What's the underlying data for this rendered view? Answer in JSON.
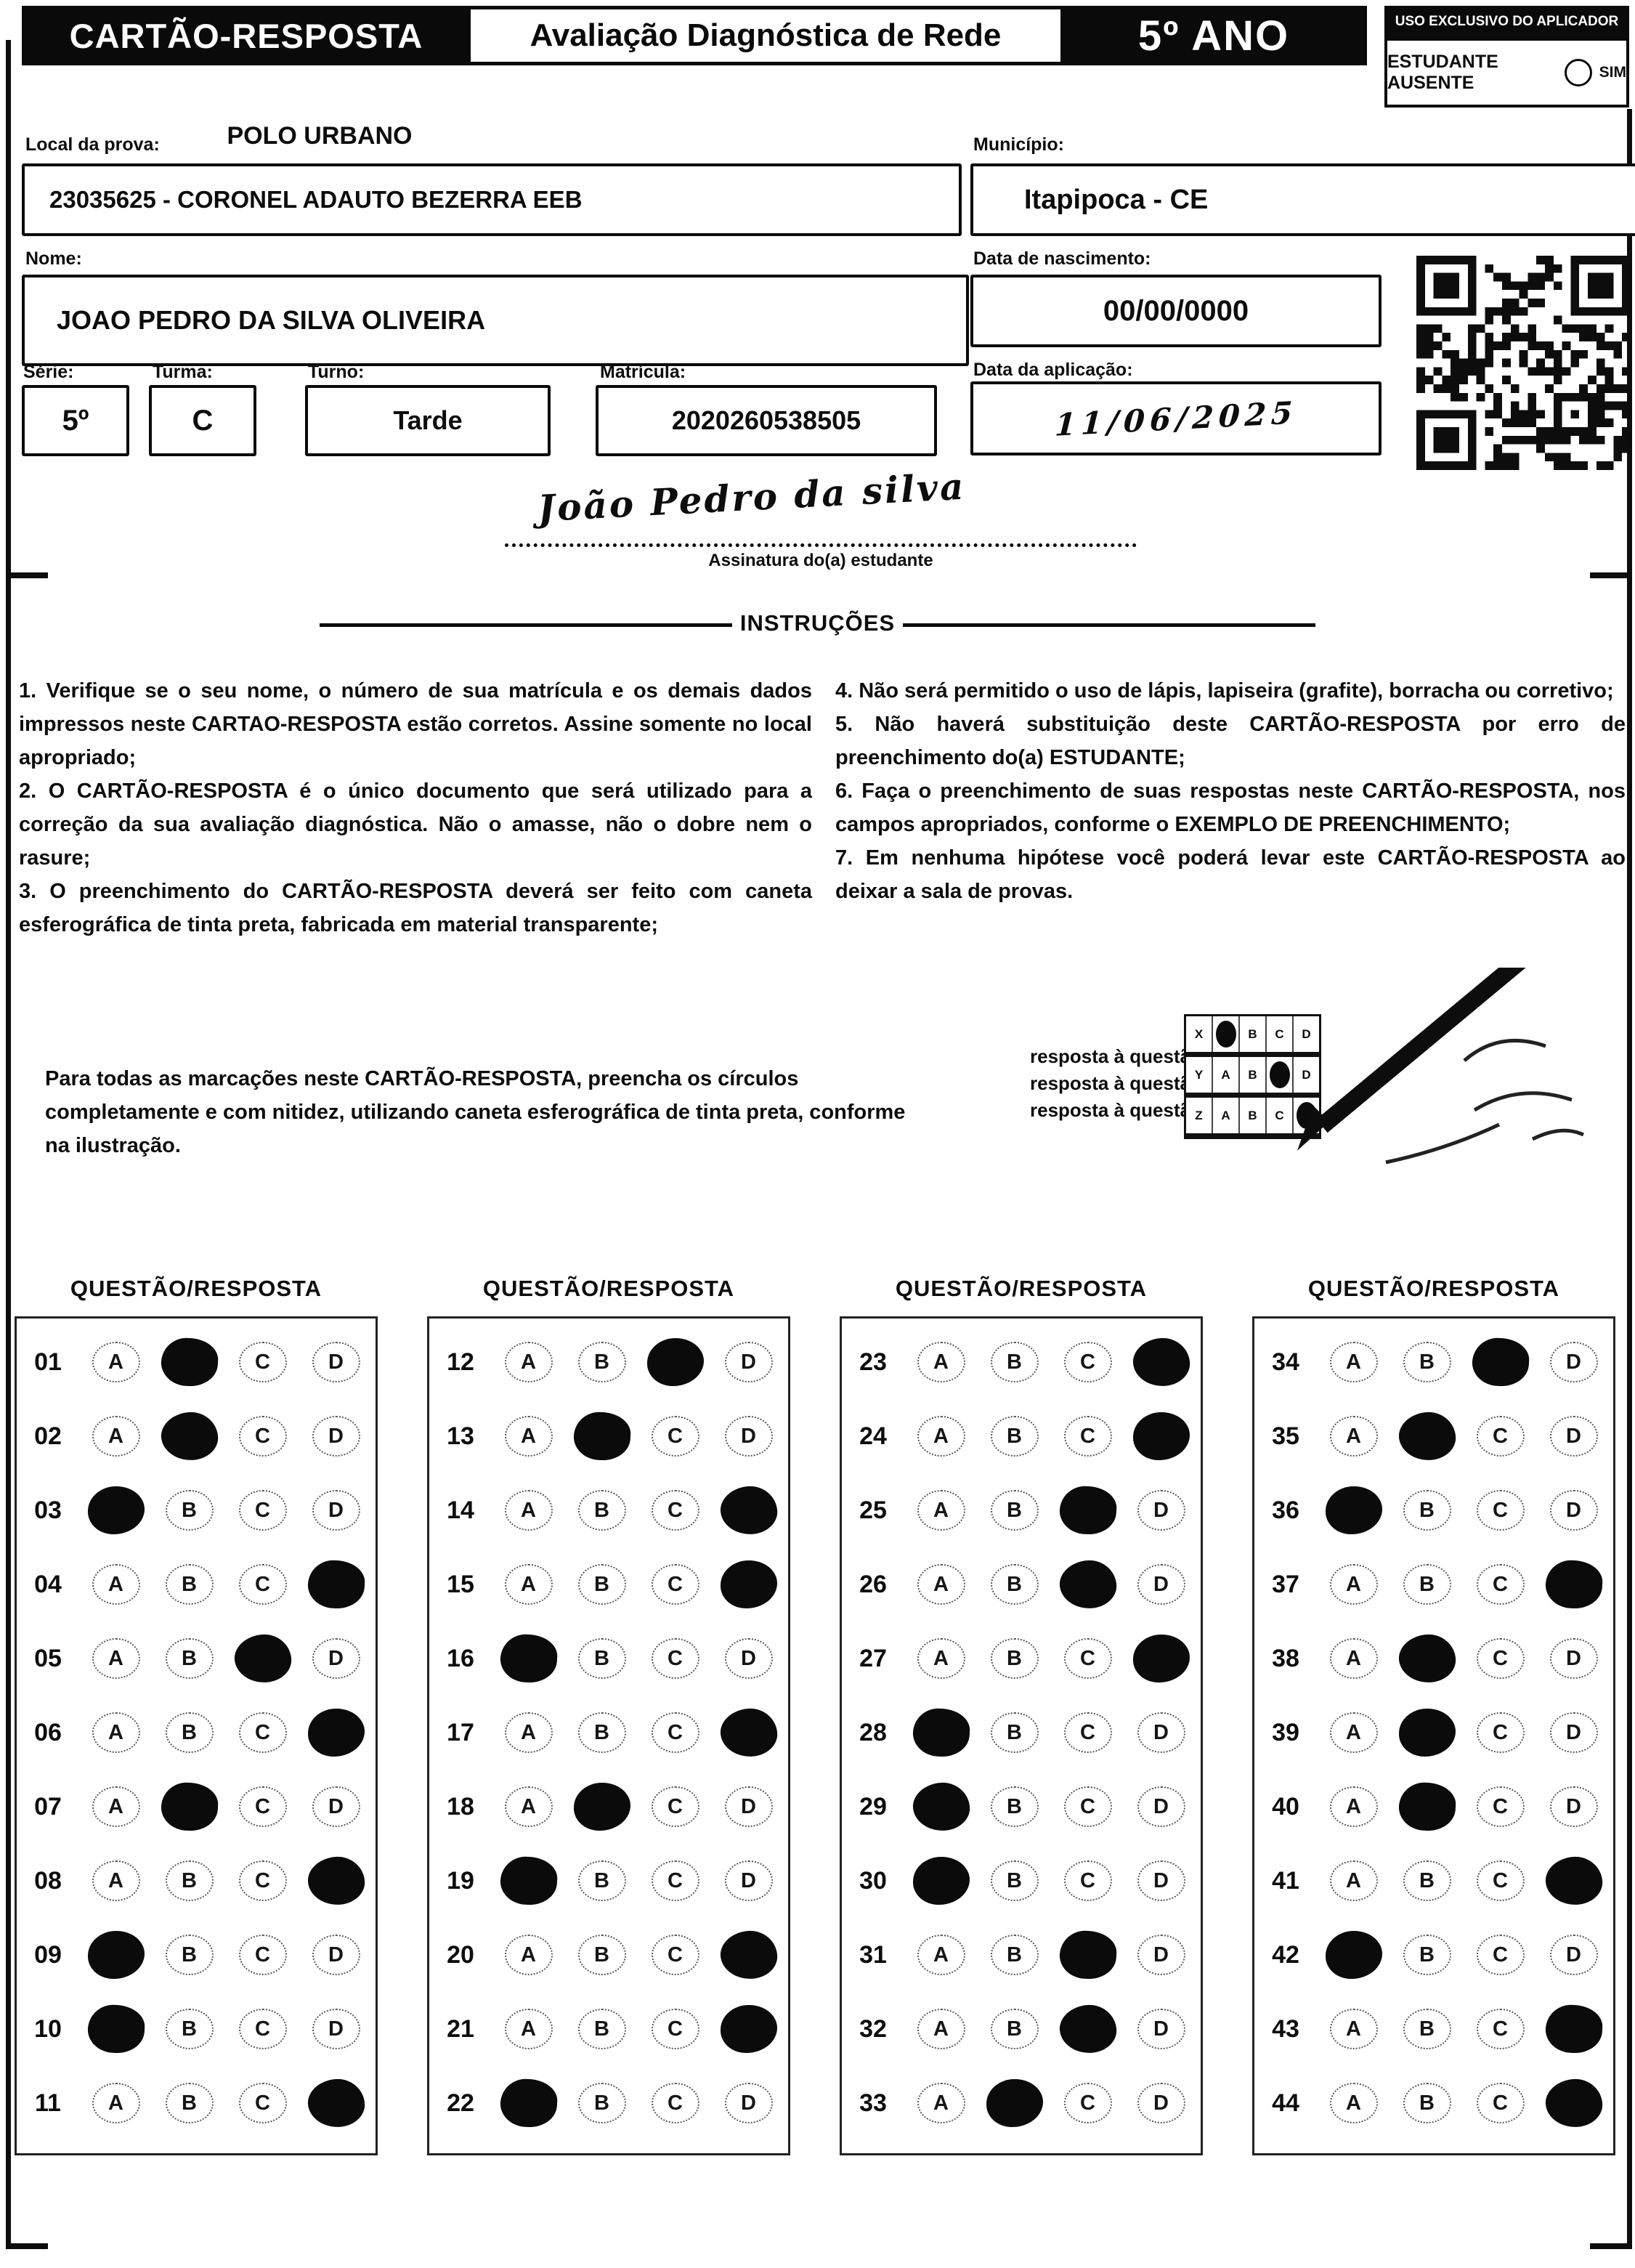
{
  "header": {
    "card_title": "CARTÃO-RESPOSTA",
    "exam_title": "Avaliação Diagnóstica de Rede",
    "grade": "5º ANO",
    "aplicador_label": "USO EXCLUSIVO DO APLICADOR",
    "ausente_label": "ESTUDANTE AUSENTE",
    "ausente_option": "SIM"
  },
  "form": {
    "local_label": "Local da prova:",
    "local_value": "POLO URBANO",
    "escola_value": "23035625 - CORONEL ADAUTO BEZERRA EEB",
    "municipio_label": "Município:",
    "municipio_value": "Itapipoca - CE",
    "nome_label": "Nome:",
    "nome_value": "JOAO PEDRO DA SILVA OLIVEIRA",
    "nascimento_label": "Data de nascimento:",
    "nascimento_value": "00/00/0000",
    "serie_label": "Série:",
    "serie_value": "5º",
    "turma_label": "Turma:",
    "turma_value": "C",
    "turno_label": "Turno:",
    "turno_value": "Tarde",
    "matricula_label": "Matrícula:",
    "matricula_value": "2020260538505",
    "aplicacao_label": "Data da aplicação:",
    "aplicacao_value": "11/06/2025",
    "assinatura_value": "João Pedro da silva",
    "assinatura_label": "Assinatura do(a) estudante"
  },
  "instructions": {
    "title": "INSTRUÇÕES",
    "left_items": [
      "1. Verifique se o seu nome, o número de sua matrícula e os demais dados impressos neste CARTAO-RESPOSTA estão corretos. Assine somente no local apropriado;",
      "2. O CARTÃO-RESPOSTA é o único documento que será utilizado para a correção da sua avaliação diagnóstica. Não o amasse, não o dobre nem o rasure;",
      "3. O preenchimento do CARTÃO-RESPOSTA deverá ser feito com caneta esferográfica de tinta preta, fabricada em material transparente;"
    ],
    "right_items": [
      "4. Não será permitido o uso de lápis, lapiseira (grafite), borracha ou corretivo;",
      "5. Não haverá substituição deste CARTÃO-RESPOSTA por erro de preenchimento do(a) ESTUDANTE;",
      "6. Faça o preenchimento de suas respostas neste CARTÃO-RESPOSTA, nos campos apropriados, conforme o EXEMPLO DE PREENCHIMENTO;",
      "7. Em nenhuma hipótese você poderá levar este CARTÃO-RESPOSTA ao deixar a sala de provas."
    ],
    "fill_note": "Para todas as marcações neste CARTÃO-RESPOSTA, preencha os círculos completamente e com nitidez, utilizando caneta esferográfica de tinta preta, conforme na ilustração.",
    "example_lines": [
      "resposta à questão X = A",
      "resposta à questão Y = C",
      "resposta à questão Z = D"
    ],
    "example_grid": [
      {
        "label": "X",
        "filled": "A"
      },
      {
        "label": "Y",
        "filled": "C"
      },
      {
        "label": "Z",
        "filled": "D"
      }
    ]
  },
  "answers": {
    "column_header": "QUESTÃO/RESPOSTA",
    "options": [
      "A",
      "B",
      "C",
      "D"
    ],
    "columns": [
      [
        {
          "num": "01",
          "marked": "B"
        },
        {
          "num": "02",
          "marked": "B"
        },
        {
          "num": "03",
          "marked": "A"
        },
        {
          "num": "04",
          "marked": "D"
        },
        {
          "num": "05",
          "marked": "C"
        },
        {
          "num": "06",
          "marked": "D"
        },
        {
          "num": "07",
          "marked": "B"
        },
        {
          "num": "08",
          "marked": "D"
        },
        {
          "num": "09",
          "marked": "A"
        },
        {
          "num": "10",
          "marked": "A"
        },
        {
          "num": "11",
          "marked": "D"
        }
      ],
      [
        {
          "num": "12",
          "marked": "C"
        },
        {
          "num": "13",
          "marked": "B"
        },
        {
          "num": "14",
          "marked": "D"
        },
        {
          "num": "15",
          "marked": "D"
        },
        {
          "num": "16",
          "marked": "A"
        },
        {
          "num": "17",
          "marked": "D"
        },
        {
          "num": "18",
          "marked": "B"
        },
        {
          "num": "19",
          "marked": "A"
        },
        {
          "num": "20",
          "marked": "D"
        },
        {
          "num": "21",
          "marked": "D"
        },
        {
          "num": "22",
          "marked": "A"
        }
      ],
      [
        {
          "num": "23",
          "marked": "D"
        },
        {
          "num": "24",
          "marked": "D"
        },
        {
          "num": "25",
          "marked": "C"
        },
        {
          "num": "26",
          "marked": "C"
        },
        {
          "num": "27",
          "marked": "D"
        },
        {
          "num": "28",
          "marked": "A"
        },
        {
          "num": "29",
          "marked": "A"
        },
        {
          "num": "30",
          "marked": "A"
        },
        {
          "num": "31",
          "marked": "C"
        },
        {
          "num": "32",
          "marked": "C"
        },
        {
          "num": "33",
          "marked": "B"
        }
      ],
      [
        {
          "num": "34",
          "marked": "C"
        },
        {
          "num": "35",
          "marked": "B"
        },
        {
          "num": "36",
          "marked": "A"
        },
        {
          "num": "37",
          "marked": "D"
        },
        {
          "num": "38",
          "marked": "B"
        },
        {
          "num": "39",
          "marked": "B"
        },
        {
          "num": "40",
          "marked": "B"
        },
        {
          "num": "41",
          "marked": "D"
        },
        {
          "num": "42",
          "marked": "A"
        },
        {
          "num": "43",
          "marked": "D"
        },
        {
          "num": "44",
          "marked": "D"
        }
      ]
    ]
  },
  "colors": {
    "ink": "#0d0d0d",
    "paper": "#ffffff"
  }
}
